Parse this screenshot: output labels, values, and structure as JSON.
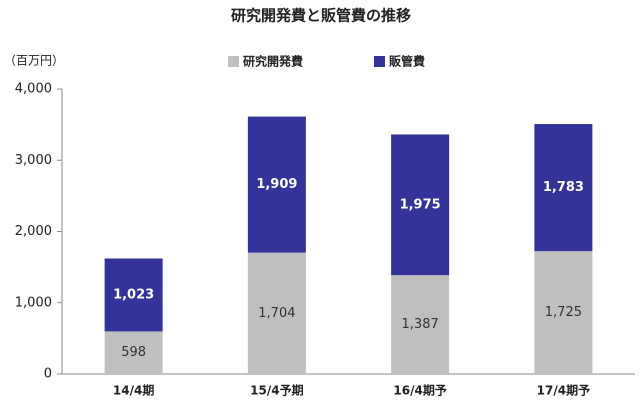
{
  "chart_data": {
    "type": "stacked_bar",
    "title": "研究開発費と販管費の推移",
    "y_label": "（百万円）",
    "categories": [
      "14/4期",
      "15/4予期",
      "16/4期予",
      "17/4期予"
    ],
    "series": [
      {
        "name": "研究開発費",
        "color": "#bfbfbf",
        "label_color": "#333333",
        "values": [
          598,
          1704,
          1387,
          1725
        ],
        "value_labels": [
          "598",
          "1,704",
          "1,387",
          "1,725"
        ]
      },
      {
        "name": "販管費",
        "color": "#333399",
        "label_color": "#ffffff",
        "values": [
          1023,
          1909,
          1975,
          1783
        ],
        "value_labels": [
          "1,023",
          "1,909",
          "1,975",
          "1,783"
        ]
      }
    ],
    "ylim": [
      0,
      4000
    ],
    "yticks": [
      0,
      {
        "value": 1000,
        "label": "1,000"
      },
      {
        "value": 2000,
        "label": "2,000"
      },
      {
        "value": 3000,
        "label": "3,000"
      },
      {
        "value": 4000,
        "label": "4,000"
      }
    ],
    "grid": false
  }
}
